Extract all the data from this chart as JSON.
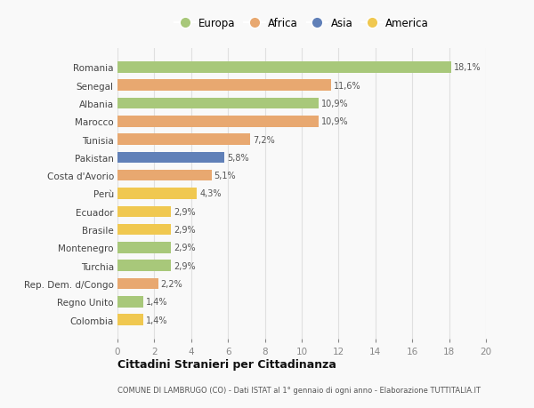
{
  "countries": [
    "Romania",
    "Senegal",
    "Albania",
    "Marocco",
    "Tunisia",
    "Pakistan",
    "Costa d'Avorio",
    "Perù",
    "Ecuador",
    "Brasile",
    "Montenegro",
    "Turchia",
    "Rep. Dem. d/Congo",
    "Regno Unito",
    "Colombia"
  ],
  "values": [
    18.1,
    11.6,
    10.9,
    10.9,
    7.2,
    5.8,
    5.1,
    4.3,
    2.9,
    2.9,
    2.9,
    2.9,
    2.2,
    1.4,
    1.4
  ],
  "labels": [
    "18,1%",
    "11,6%",
    "10,9%",
    "10,9%",
    "7,2%",
    "5,8%",
    "5,1%",
    "4,3%",
    "2,9%",
    "2,9%",
    "2,9%",
    "2,9%",
    "2,2%",
    "1,4%",
    "1,4%"
  ],
  "continents": [
    "Europa",
    "Africa",
    "Europa",
    "Africa",
    "Africa",
    "Asia",
    "Africa",
    "America",
    "America",
    "America",
    "Europa",
    "Europa",
    "Africa",
    "Europa",
    "America"
  ],
  "colors": {
    "Europa": "#a8c87a",
    "Africa": "#e8a870",
    "Asia": "#6080b8",
    "America": "#f0c850"
  },
  "legend_order": [
    "Europa",
    "Africa",
    "Asia",
    "America"
  ],
  "xlim": [
    0,
    20
  ],
  "xticks": [
    0,
    2,
    4,
    6,
    8,
    10,
    12,
    14,
    16,
    18,
    20
  ],
  "title": "Cittadini Stranieri per Cittadinanza",
  "subtitle": "COMUNE DI LAMBRUGO (CO) - Dati ISTAT al 1° gennaio di ogni anno - Elaborazione TUTTITALIA.IT",
  "bg_color": "#f9f9f9",
  "bar_height": 0.62,
  "grid_color": "#e0e0e0"
}
